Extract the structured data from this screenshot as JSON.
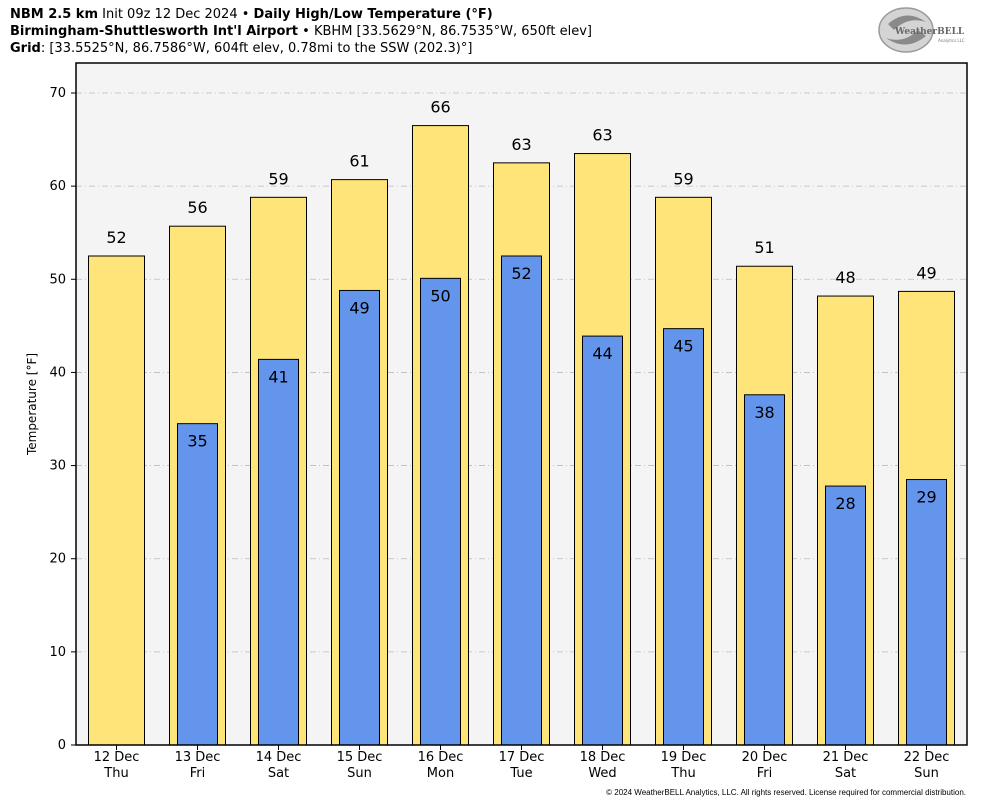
{
  "header": {
    "model": "NBM 2.5 km",
    "init": "Init 09z 12 Dec 2024",
    "separator": " • ",
    "product": "Daily High/Low Temperature (°F)",
    "station_name": "Birmingham-Shuttlesworth Int'l Airport",
    "station_info": "KBHM [33.5629°N, 86.7535°W, 650ft elev]",
    "grid_label": "Grid",
    "grid_info": ": [33.5525°N, 86.7586°W, 604ft elev, 0.78mi to the SSW (202.3)°]"
  },
  "logo": {
    "text_main": "WeatherBELL",
    "text_sub": "Analytics LLC"
  },
  "copyright": "© 2024 WeatherBELL Analytics, LLC. All rights reserved. License required for commercial distribution.",
  "chart_data": {
    "type": "bar",
    "categories": [
      "12 Dec",
      "13 Dec",
      "14 Dec",
      "15 Dec",
      "16 Dec",
      "17 Dec",
      "18 Dec",
      "19 Dec",
      "20 Dec",
      "21 Dec",
      "22 Dec"
    ],
    "weekdays": [
      "Thu",
      "Fri",
      "Sat",
      "Sun",
      "Mon",
      "Tue",
      "Wed",
      "Thu",
      "Fri",
      "Sat",
      "Sun"
    ],
    "series": [
      {
        "values": [
          52.5,
          55.7,
          58.8,
          60.7,
          66.5,
          62.5,
          63.5,
          58.8,
          51.4,
          48.2,
          48.7
        ],
        "labels": [
          "52",
          "56",
          "59",
          "61",
          "66",
          "63",
          "63",
          "59",
          "51",
          "48",
          "49"
        ],
        "color": "#ffe47a"
      },
      {
        "values": [
          null,
          34.5,
          41.4,
          48.8,
          50.1,
          52.5,
          43.9,
          44.7,
          37.6,
          27.8,
          28.5
        ],
        "labels": [
          "",
          "35",
          "41",
          "49",
          "50",
          "52",
          "44",
          "45",
          "38",
          "28",
          "29"
        ],
        "color": "#6495ed"
      }
    ],
    "ylabel": "Temperature [°F]",
    "ylim": [
      0,
      70
    ],
    "yticks": [
      "0",
      "10",
      "20",
      "30",
      "40",
      "50",
      "60",
      "70"
    ],
    "grid": true,
    "plot_background": "#f4f4f4",
    "gridline_color": "#bbbbbb"
  }
}
